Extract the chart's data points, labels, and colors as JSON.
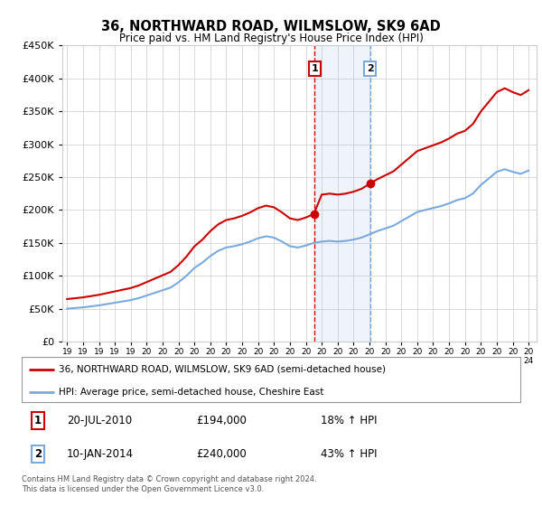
{
  "title": "36, NORTHWARD ROAD, WILMSLOW, SK9 6AD",
  "subtitle": "Price paid vs. HM Land Registry's House Price Index (HPI)",
  "legend_line1": "36, NORTHWARD ROAD, WILMSLOW, SK9 6AD (semi-detached house)",
  "legend_line2": "HPI: Average price, semi-detached house, Cheshire East",
  "transaction1_date": "20-JUL-2010",
  "transaction1_price": 194000,
  "transaction1_label": "18% ↑ HPI",
  "transaction2_date": "10-JAN-2014",
  "transaction2_price": 240000,
  "transaction2_label": "43% ↑ HPI",
  "footer": "Contains HM Land Registry data © Crown copyright and database right 2024.\nThis data is licensed under the Open Government Licence v3.0.",
  "hpi_color": "#7aaadd",
  "price_color": "#cc0000",
  "background_color": "#ffffff",
  "plot_bg_color": "#ffffff",
  "grid_color": "#cccccc",
  "ylim_min": 0,
  "ylim_max": 450000,
  "transaction1_x": 2010.55,
  "transaction2_x": 2014.03,
  "hpi_data_x": [
    1995.0,
    1995.5,
    1996.0,
    1996.5,
    1997.0,
    1997.5,
    1998.0,
    1998.5,
    1999.0,
    1999.5,
    2000.0,
    2000.5,
    2001.0,
    2001.5,
    2002.0,
    2002.5,
    2003.0,
    2003.5,
    2004.0,
    2004.5,
    2005.0,
    2005.5,
    2006.0,
    2006.5,
    2007.0,
    2007.5,
    2008.0,
    2008.5,
    2009.0,
    2009.5,
    2010.0,
    2010.5,
    2011.0,
    2011.5,
    2012.0,
    2012.5,
    2013.0,
    2013.5,
    2014.0,
    2014.5,
    2015.0,
    2015.5,
    2016.0,
    2016.5,
    2017.0,
    2017.5,
    2018.0,
    2018.5,
    2019.0,
    2019.5,
    2020.0,
    2020.5,
    2021.0,
    2021.5,
    2022.0,
    2022.5,
    2023.0,
    2023.5,
    2024.0
  ],
  "hpi_data_y": [
    50000,
    51000,
    52000,
    53500,
    55000,
    57000,
    59000,
    61000,
    63000,
    66000,
    70000,
    74000,
    78000,
    82000,
    90000,
    100000,
    112000,
    120000,
    130000,
    138000,
    143000,
    145000,
    148000,
    152000,
    157000,
    160000,
    158000,
    152000,
    145000,
    143000,
    146000,
    150000,
    152000,
    153000,
    152000,
    153000,
    155000,
    158000,
    163000,
    168000,
    172000,
    176000,
    183000,
    190000,
    197000,
    200000,
    203000,
    206000,
    210000,
    215000,
    218000,
    225000,
    238000,
    248000,
    258000,
    262000,
    258000,
    255000,
    260000
  ]
}
